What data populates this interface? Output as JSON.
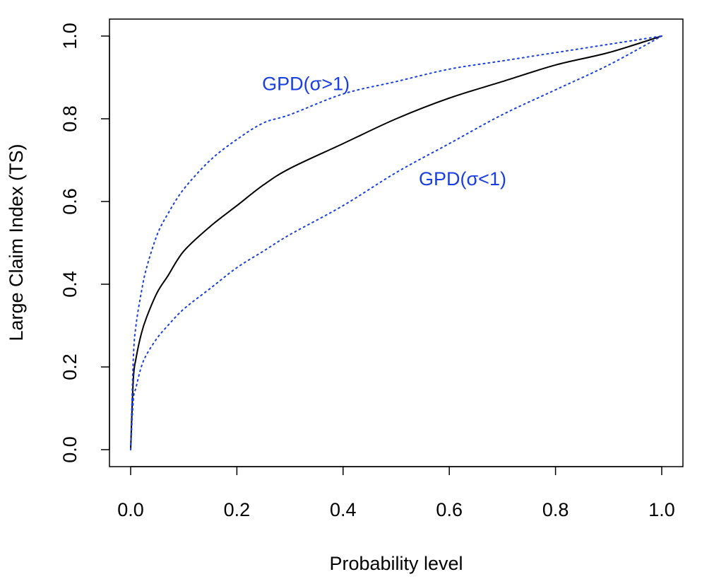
{
  "chart_data": {
    "type": "line",
    "title": "",
    "xlabel": "Probability level",
    "ylabel": "Large Claim Index (TS)",
    "xlim": [
      0,
      1
    ],
    "ylim": [
      0,
      1
    ],
    "xticks": [
      "0.0",
      "0.2",
      "0.4",
      "0.6",
      "0.8",
      "1.0"
    ],
    "yticks": [
      "0.0",
      "0.2",
      "0.4",
      "0.6",
      "0.8",
      "1.0"
    ],
    "grid": false,
    "legend": "none",
    "series": [
      {
        "line_style": "solid",
        "color": "#000000",
        "x": [
          0,
          0.005,
          0.01,
          0.02,
          0.03,
          0.05,
          0.07,
          0.1,
          0.15,
          0.2,
          0.25,
          0.3,
          0.4,
          0.5,
          0.6,
          0.7,
          0.8,
          0.9,
          1.0
        ],
        "y": [
          0,
          0.17,
          0.22,
          0.28,
          0.32,
          0.38,
          0.42,
          0.48,
          0.54,
          0.59,
          0.64,
          0.68,
          0.74,
          0.8,
          0.85,
          0.89,
          0.93,
          0.96,
          1.0
        ]
      },
      {
        "line_style": "dotted",
        "color": "#1a3ee0",
        "x": [
          0,
          0.005,
          0.01,
          0.02,
          0.03,
          0.05,
          0.07,
          0.1,
          0.15,
          0.2,
          0.25,
          0.3,
          0.4,
          0.5,
          0.6,
          0.7,
          0.8,
          0.9,
          1.0
        ],
        "y": [
          0,
          0.22,
          0.3,
          0.38,
          0.44,
          0.52,
          0.57,
          0.63,
          0.7,
          0.75,
          0.79,
          0.81,
          0.86,
          0.89,
          0.92,
          0.94,
          0.96,
          0.98,
          1.0
        ]
      },
      {
        "line_style": "dotted",
        "color": "#1a3ee0",
        "x": [
          0,
          0.005,
          0.01,
          0.02,
          0.03,
          0.05,
          0.07,
          0.1,
          0.15,
          0.2,
          0.25,
          0.3,
          0.4,
          0.5,
          0.6,
          0.7,
          0.8,
          0.9,
          1.0
        ],
        "y": [
          0,
          0.12,
          0.15,
          0.2,
          0.23,
          0.27,
          0.3,
          0.34,
          0.39,
          0.44,
          0.48,
          0.52,
          0.59,
          0.67,
          0.74,
          0.81,
          0.87,
          0.93,
          1.0
        ]
      }
    ],
    "annotations": [
      {
        "text": "GPD(σ>1)",
        "x": 0.33,
        "y": 0.885,
        "color": "#1a3ee0"
      },
      {
        "text": "GPD(σ<1)",
        "x": 0.625,
        "y": 0.655,
        "color": "#1a3ee0"
      }
    ]
  }
}
